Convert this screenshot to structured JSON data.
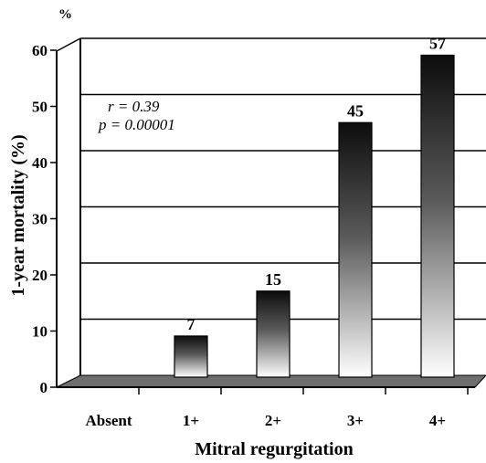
{
  "chart_data": {
    "type": "bar",
    "categories": [
      "Absent",
      "1+",
      "2+",
      "3+",
      "4+"
    ],
    "values": [
      0,
      7,
      15,
      45,
      57
    ],
    "data_labels": [
      "",
      "7",
      "15",
      "45",
      "57"
    ],
    "title": "",
    "xlabel": "Mitral regurgitation",
    "ylabel": "1-year mortality (%)",
    "y_unit": "%",
    "ylim": [
      0,
      60
    ],
    "yticks": [
      0,
      10,
      20,
      30,
      40,
      50,
      60
    ],
    "grid": true,
    "bar_style": "vertical gradient, black top to white bottom",
    "annotations": [
      "r = 0.39",
      "p = 0.00001"
    ]
  }
}
